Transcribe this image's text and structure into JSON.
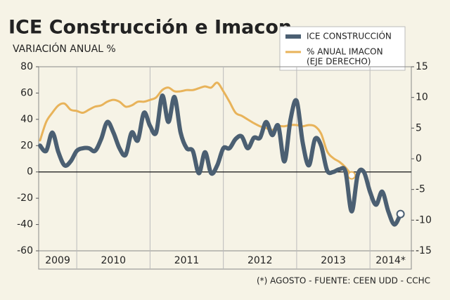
{
  "chart_data": {
    "type": "line",
    "title": "ICE Construcción e Imacon",
    "subtitle": "VARIACIÓN ANUAL %",
    "footer": "(*) AGOSTO - FUENTE: CEEN UDD - CCHC",
    "year_labels": [
      "2009",
      "2010",
      "2011",
      "2012",
      "2013",
      "2014*"
    ],
    "ylim": [
      -60,
      80
    ],
    "yticks": [
      80,
      60,
      40,
      20,
      0,
      -20,
      -40,
      -60
    ],
    "y2lim": [
      -15,
      15
    ],
    "y2ticks": [
      15,
      10,
      5,
      0,
      -5,
      -10,
      -15
    ],
    "legend_note": "(EJE DERECHO)",
    "series": [
      {
        "name": "ICE CONSTRUCCIÓN",
        "color": "#4b5f72",
        "axis": "y",
        "values": [
          20,
          16,
          30,
          15,
          5,
          8,
          16,
          18,
          18,
          16,
          25,
          38,
          30,
          18,
          13,
          30,
          24,
          45,
          35,
          30,
          58,
          38,
          57,
          30,
          18,
          16,
          -1,
          15,
          -1,
          5,
          18,
          18,
          25,
          27,
          18,
          26,
          26,
          38,
          28,
          35,
          8,
          40,
          54,
          22,
          5,
          25,
          20,
          1,
          0,
          2,
          0,
          -30,
          -2,
          0,
          -15,
          -25,
          -15,
          -30,
          -40,
          -32
        ]
      },
      {
        "name": "% ANUAL IMACON",
        "color": "#e8b35a",
        "axis": "y2",
        "values": [
          3,
          6,
          7.5,
          8.7,
          9,
          8,
          7.8,
          7.5,
          8,
          8.5,
          8.7,
          9.3,
          9.6,
          9.3,
          8.5,
          8.7,
          9.3,
          9.3,
          9.6,
          10,
          11.2,
          11.6,
          11,
          11,
          11.2,
          11.2,
          11.5,
          11.8,
          11.6,
          12.4,
          11,
          9.3,
          7.5,
          7,
          6.4,
          5.8,
          5.3,
          5,
          4.7,
          5.3,
          5.3,
          5.5,
          5.5,
          5.3,
          5.5,
          5.3,
          4.1,
          1.2,
          0.1,
          -0.5,
          -1.4,
          -2.7,
          null,
          null,
          null,
          null,
          null,
          null,
          null,
          null
        ]
      }
    ]
  }
}
